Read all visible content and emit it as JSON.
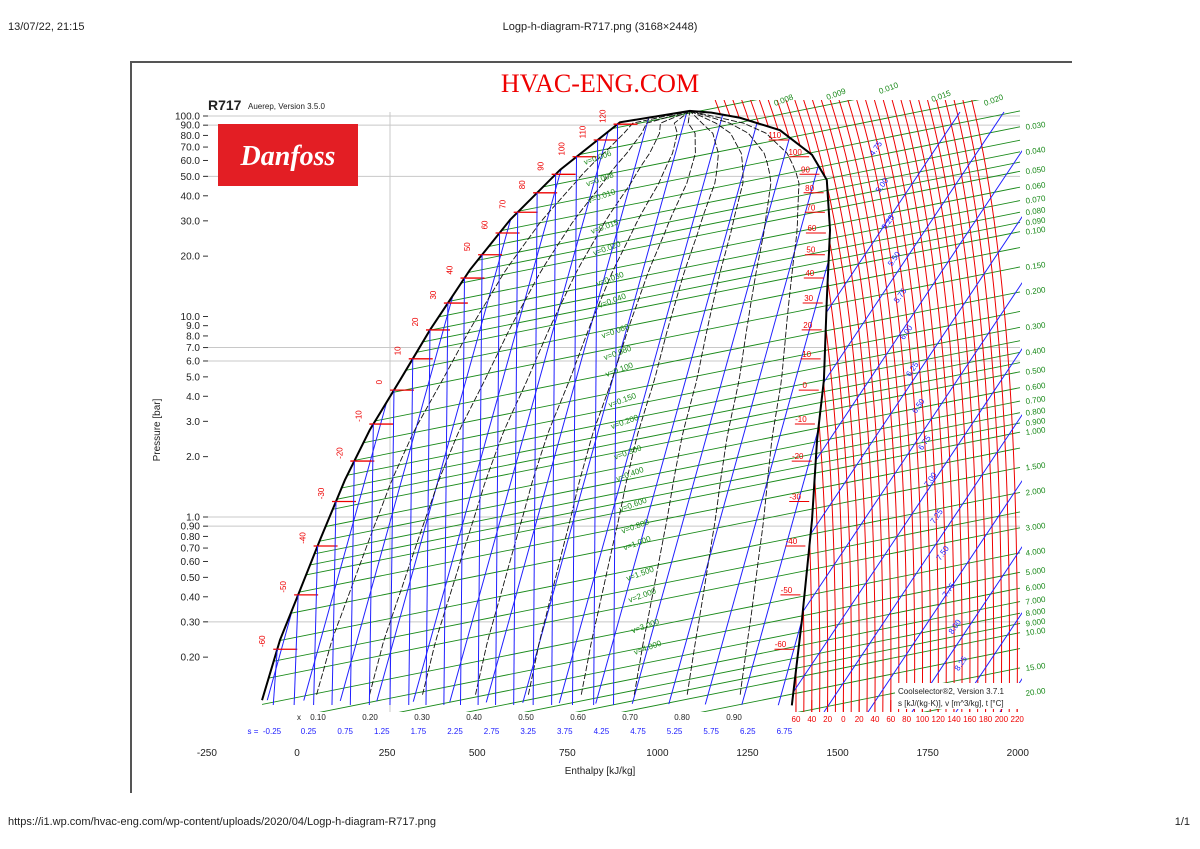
{
  "browser": {
    "timestamp": "13/07/22, 21:15",
    "doc_title": "Logp-h-diagram-R717.png (3168×2448)",
    "url": "https://i1.wp.com/hvac-eng.com/wp-content/uploads/2020/04/Logp-h-diagram-R717.png",
    "page_count": "1/1"
  },
  "watermark": "HVAC-ENG.COM",
  "logo_text": "Danfoss",
  "colors": {
    "isotherm": "#ee0000",
    "isochore": "#1a8a1a",
    "isentrope": "#2020ff",
    "quality": "#111111",
    "brand": "#e31e24"
  },
  "chart_data": {
    "type": "line",
    "title": "R717",
    "subtitle": "Auerep, Version 3.5.0",
    "credit": "Coolselector®2, Version 3.7.1",
    "units_note": "s [kJ/(kg·K)], v [m^3/kg], t [°C]",
    "xlabel": "Enthalpy [kJ/kg]",
    "ylabel": "Pressure [bar]",
    "xlim": [
      -250,
      2000
    ],
    "ylim": [
      0.13,
      110
    ],
    "yscale": "log",
    "x_ticks": [
      "-250",
      "0",
      "250",
      "500",
      "750",
      "1000",
      "1250",
      "1500",
      "1750",
      "2000"
    ],
    "y_ticks": [
      "100.0",
      "90.0",
      "80.0",
      "70.0",
      "60.0",
      "50.0",
      "40.0",
      "30.0",
      "20.0",
      "10.0",
      "9.0",
      "8.0",
      "7.0",
      "6.0",
      "5.0",
      "4.0",
      "3.0",
      "2.0",
      "1.0",
      "0.90",
      "0.80",
      "0.70",
      "0.60",
      "0.50",
      "0.40",
      "0.30",
      "0.20"
    ],
    "grid_pressures": [
      100,
      90,
      50,
      7,
      6,
      1,
      0.9,
      0.3
    ],
    "saturation_liquid": [
      [
        -97,
        0.122
      ],
      [
        -47,
        0.244
      ],
      [
        8,
        0.43
      ],
      [
        64,
        0.77
      ],
      [
        133,
        1.53
      ],
      [
        202,
        2.72
      ],
      [
        286,
        4.82
      ],
      [
        369,
        8.57
      ],
      [
        480,
        17.1
      ],
      [
        591,
        30.3
      ],
      [
        730,
        53.9
      ],
      [
        896,
        93
      ]
    ],
    "critical_point": [
      1090,
      106
    ],
    "saturation_vapor": [
      [
        1373,
        0.115
      ],
      [
        1401,
        0.306
      ],
      [
        1429,
        0.966
      ],
      [
        1443,
        2.42
      ],
      [
        1462,
        4.82
      ],
      [
        1470,
        12.1
      ],
      [
        1479,
        27
      ],
      [
        1470,
        48
      ],
      [
        1429,
        64
      ],
      [
        1340,
        85
      ],
      [
        1229,
        98
      ],
      [
        1150,
        104
      ]
    ],
    "saturation_temperatures": [
      {
        "t": "-60",
        "p": 0.219
      },
      {
        "t": "-50",
        "p": 0.409
      },
      {
        "t": "-40",
        "p": 0.717
      },
      {
        "t": "-30",
        "p": 1.195
      },
      {
        "t": "-20",
        "p": 1.901
      },
      {
        "t": "-10",
        "p": 2.908
      },
      {
        "t": "0",
        "p": 4.295
      },
      {
        "t": "10",
        "p": 6.15
      },
      {
        "t": "20",
        "p": 8.57
      },
      {
        "t": "30",
        "p": 11.67
      },
      {
        "t": "40",
        "p": 15.55
      },
      {
        "t": "50",
        "p": 20.33
      },
      {
        "t": "60",
        "p": 26.1
      },
      {
        "t": "70",
        "p": 33.1
      },
      {
        "t": "80",
        "p": 41.4
      },
      {
        "t": "90",
        "p": 51.2
      },
      {
        "t": "100",
        "p": 62.6
      },
      {
        "t": "110",
        "p": 75.9
      },
      {
        "t": "120",
        "p": 91.0
      }
    ],
    "vapor_side_temperatures": [
      "110",
      "100",
      "90",
      "80",
      "70",
      "60",
      "50",
      "40",
      "30",
      "20",
      "10",
      "0",
      "-10",
      "-20",
      "-30",
      "-40",
      "-50",
      "-60"
    ],
    "quality_label": "x",
    "quality_lines": [
      "0.10",
      "0.20",
      "0.30",
      "0.40",
      "0.50",
      "0.60",
      "0.70",
      "0.80",
      "0.90"
    ],
    "entropy_label": "s =",
    "entropy_bottom": [
      "-0.25",
      "0.25",
      "0.75",
      "1.25",
      "1.75",
      "2.25",
      "2.75",
      "3.25",
      "3.75",
      "4.25",
      "4.75",
      "5.25",
      "5.75",
      "6.25",
      "6.75"
    ],
    "entropy_superheat": [
      "4.75",
      "5.00",
      "5.25",
      "5.50",
      "5.75",
      "6.00",
      "6.25",
      "6.50",
      "6.75",
      "7.00",
      "7.25",
      "7.50",
      "7.75",
      "8.00",
      "8.25"
    ],
    "superheat_temps": [
      "60",
      "40",
      "20",
      "0",
      "20",
      "40",
      "60",
      "80",
      "100",
      "120",
      "140",
      "160",
      "180",
      "200",
      "220"
    ],
    "volume_top": [
      "0.008",
      "0.009",
      "0.010",
      "0.015",
      "0.020"
    ],
    "volume_right": [
      "0.030",
      "0.040",
      "0.050",
      "0.060",
      "0.070",
      "0.080",
      "0.090",
      "0.100",
      "0.150",
      "0.200",
      "0.300",
      "0.400",
      "0.500",
      "0.600",
      "0.700",
      "0.800",
      "0.900",
      "1.000",
      "1.500",
      "2.000",
      "3.000",
      "4.000",
      "5.000",
      "6.000",
      "7.000",
      "8.000",
      "9.000",
      "10.00",
      "15.00",
      "20.00"
    ],
    "volume_inner": [
      "0.006",
      "0.008",
      "0.010",
      "0.015",
      "0.020",
      "0.030",
      "0.040",
      "0.060",
      "0.080",
      "0.100",
      "0.150",
      "0.200",
      "0.300",
      "0.400",
      "0.600",
      "0.800",
      "1.000",
      "1.500",
      "2.000",
      "3.000",
      "4.000"
    ],
    "volume_prefix": "v="
  }
}
